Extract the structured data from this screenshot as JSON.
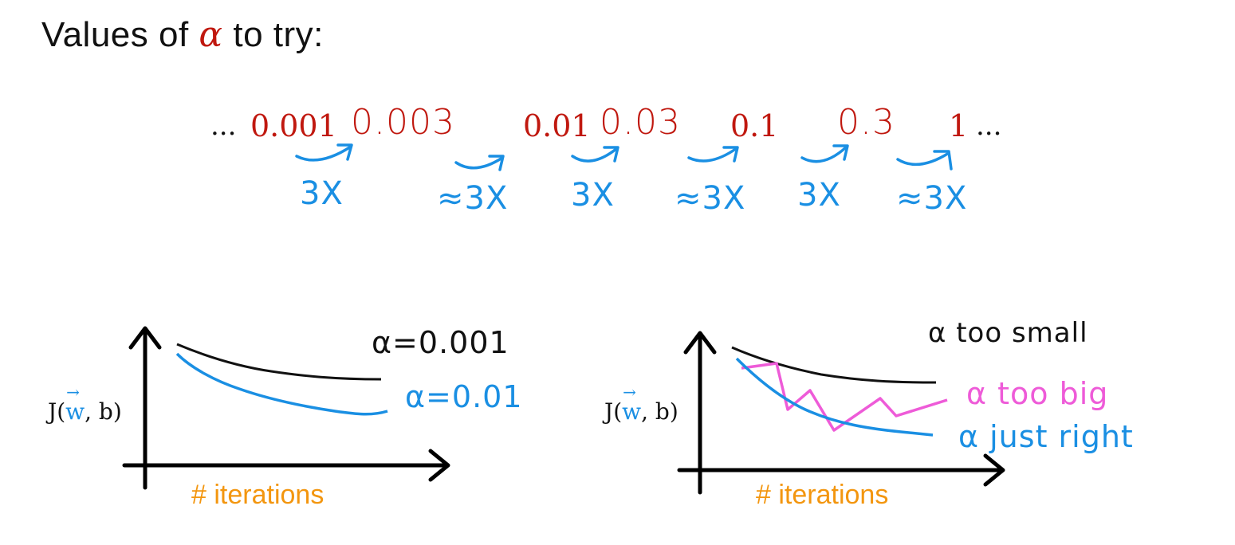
{
  "title": {
    "prefix": "Values of ",
    "alpha": "α",
    "suffix": " to try:"
  },
  "sequence": {
    "leading_ellipsis": "...",
    "trailing_ellipsis": "...",
    "values": [
      "0.001",
      "0.003",
      "0.01",
      "0.03",
      "0.1",
      "0.3",
      "1"
    ],
    "multipliers": [
      "3X",
      "≈3X",
      "3X",
      "≈3X",
      "3X",
      "≈3X"
    ],
    "colors": {
      "value": "#c0180f",
      "arrow": "#1a8fe3"
    }
  },
  "graphs": [
    {
      "y_label_prefix": "J(",
      "y_label_vec": "w",
      "y_label_suffix": ", b)",
      "x_label": "# iterations",
      "annotations": [
        {
          "text": "α=0.001",
          "color": "#111111"
        },
        {
          "text": "α=0.01",
          "color": "#1a8fe3"
        }
      ]
    },
    {
      "y_label_prefix": "J(",
      "y_label_vec": "w",
      "y_label_suffix": ", b)",
      "x_label": "# iterations",
      "annotations": [
        {
          "text": "α too small",
          "color": "#111111"
        },
        {
          "text": "α too big",
          "color": "#ee5bd8"
        },
        {
          "text": "α just right",
          "color": "#1a8fe3"
        }
      ]
    }
  ]
}
